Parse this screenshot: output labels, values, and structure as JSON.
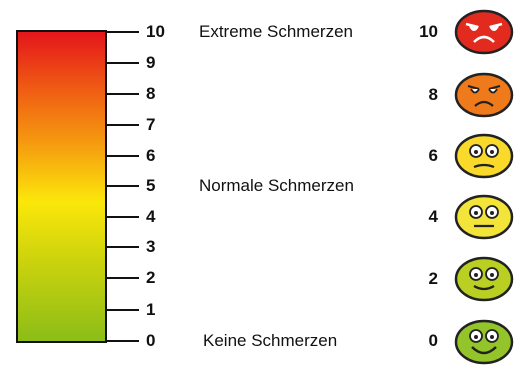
{
  "scale": {
    "ticks": [
      "10",
      "9",
      "8",
      "7",
      "6",
      "5",
      "4",
      "3",
      "2",
      "1",
      "0"
    ]
  },
  "labels": {
    "extreme": "Extreme Schmerzen",
    "normal": "Normale Schmerzen",
    "none": "Keine Schmerzen"
  },
  "faces": [
    {
      "value": "10",
      "color": "#e32a1e",
      "icon": "very-sad-face-icon"
    },
    {
      "value": "8",
      "color": "#ef7a1b",
      "icon": "sad-face-icon"
    },
    {
      "value": "6",
      "color": "#f9d92a",
      "icon": "displeased-face-icon"
    },
    {
      "value": "4",
      "color": "#f3e43a",
      "icon": "neutral-face-icon"
    },
    {
      "value": "2",
      "color": "#b9cf22",
      "icon": "slight-smile-face-icon"
    },
    {
      "value": "0",
      "color": "#93c52a",
      "icon": "happy-face-icon"
    }
  ],
  "colors": {
    "top": "#e4151b",
    "middle": "#fbe70a",
    "bottom": "#8cbd18"
  }
}
